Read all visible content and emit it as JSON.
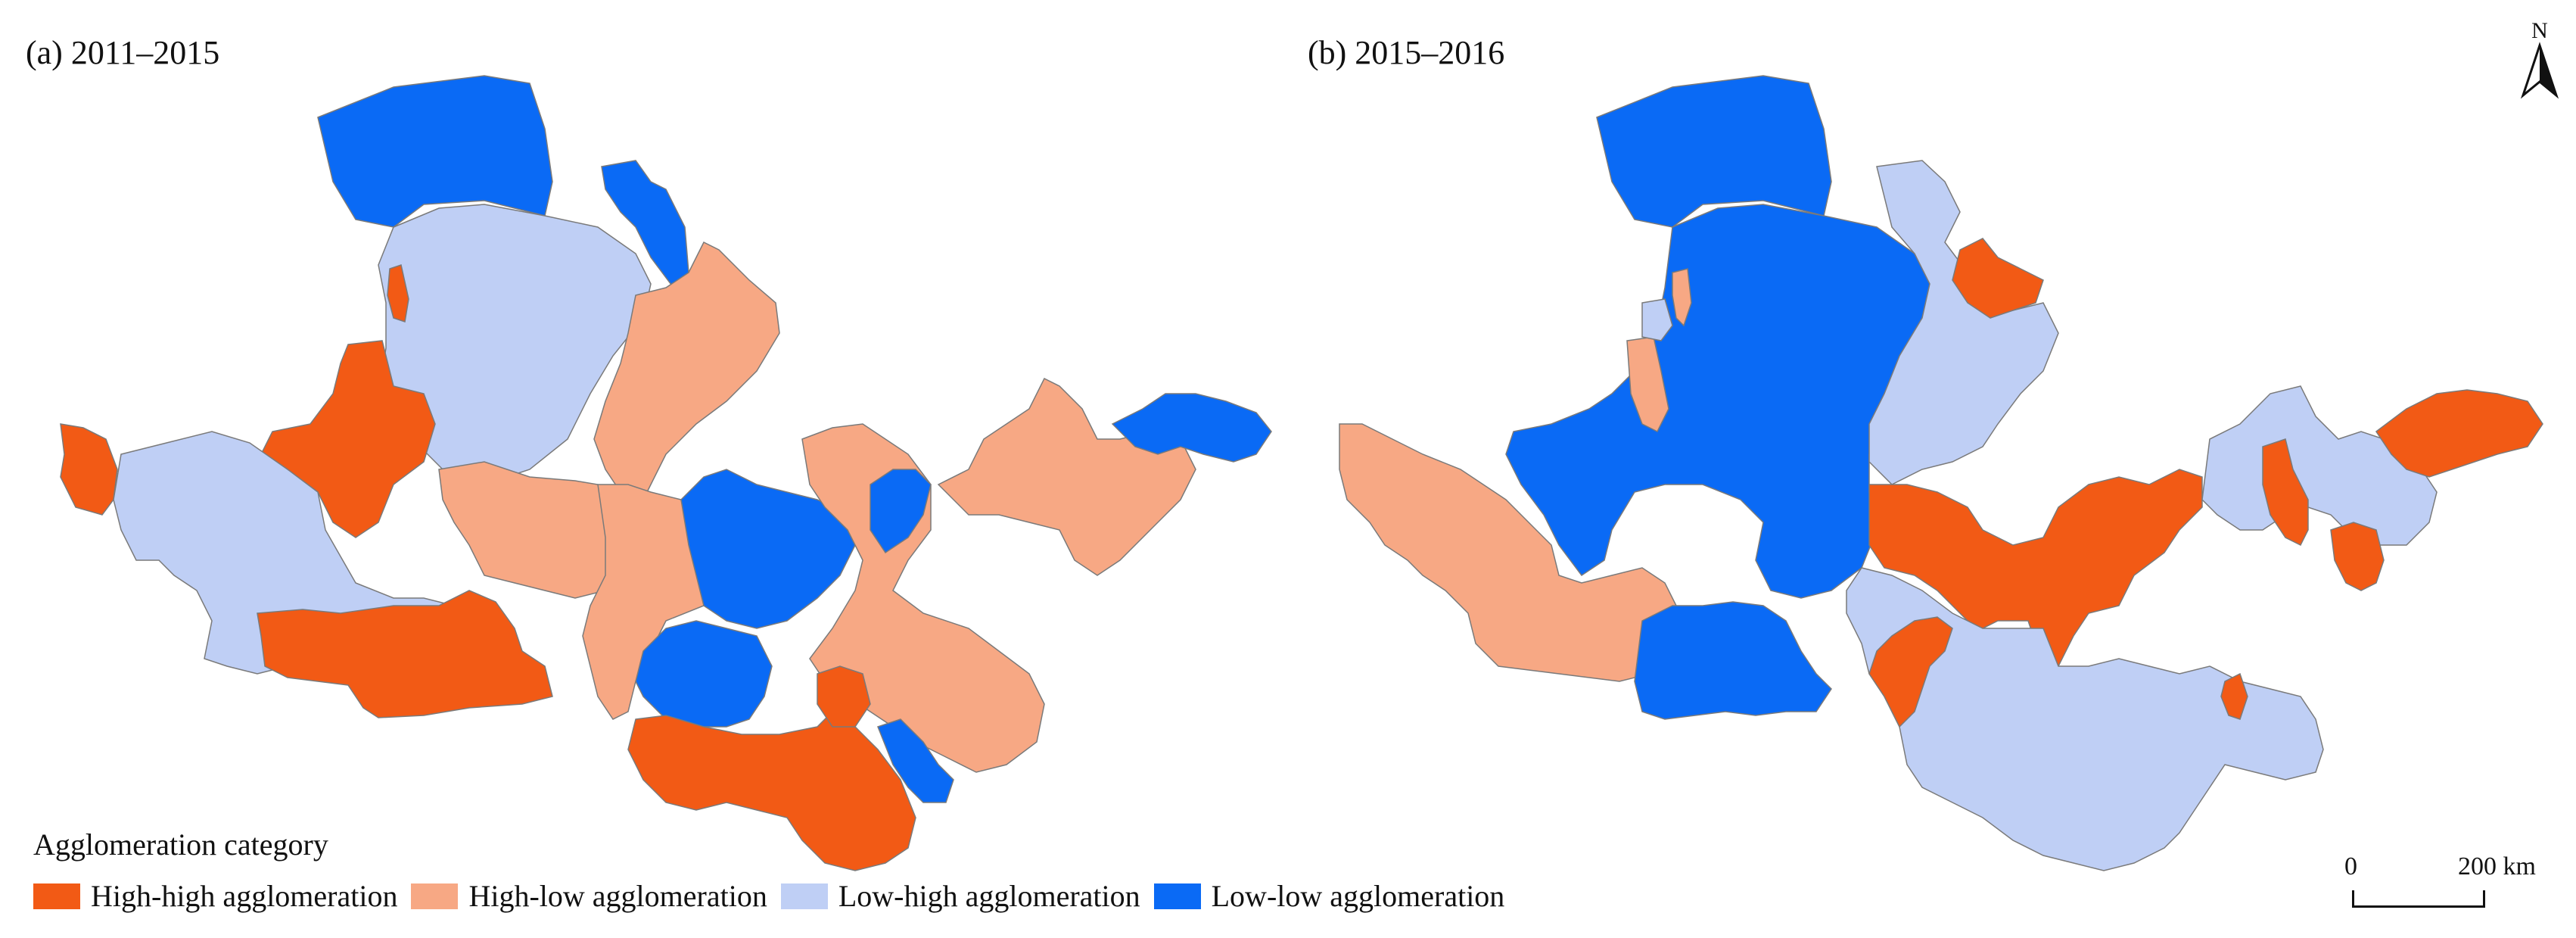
{
  "panels": {
    "a_title": "(a) 2011–2015",
    "b_title": "(b) 2015–2016"
  },
  "legend": {
    "title": "Agglomeration category",
    "items": [
      {
        "label": "High-high agglomeration",
        "color": "#f25a15"
      },
      {
        "label": "High-low agglomeration",
        "color": "#f7a884"
      },
      {
        "label": "Low-high agglomeration",
        "color": "#bfcff5"
      },
      {
        "label": "Low-low agglomeration",
        "color": "#0a6af5"
      }
    ]
  },
  "north_arrow": {
    "label": "N",
    "icon": "north-arrow-icon"
  },
  "scale_bar": {
    "zero": "0",
    "distance": "200 km"
  }
}
